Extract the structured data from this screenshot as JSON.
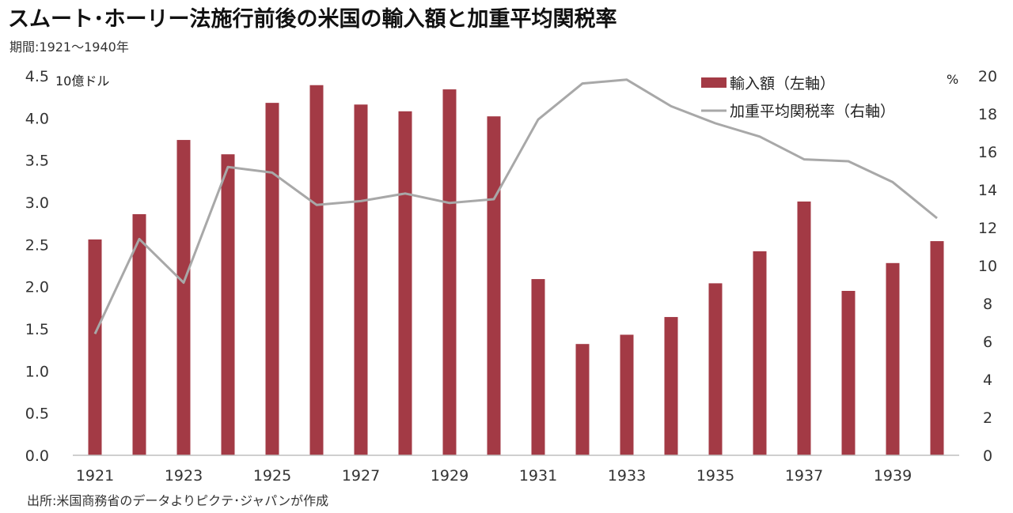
{
  "header": {
    "title": "スムート･ホーリー法施行前後の米国の輸入額と加重平均関税率",
    "subtitle": "期間:1921～1940年"
  },
  "footer": {
    "source": "出所:米国商務省のデータよりピクテ･ジャパンが作成"
  },
  "colors": {
    "bar": "#a33a45",
    "line": "#a8a8a8",
    "axis": "#bfbfbf"
  },
  "chart_data": {
    "type": "bar",
    "x": [
      1921,
      1922,
      1923,
      1924,
      1925,
      1926,
      1927,
      1928,
      1929,
      1930,
      1931,
      1932,
      1933,
      1934,
      1935,
      1936,
      1937,
      1938,
      1939,
      1940
    ],
    "x_tick_labels": [
      "1921",
      "1923",
      "1925",
      "1927",
      "1929",
      "1931",
      "1933",
      "1935",
      "1937",
      "1939"
    ],
    "left_unit": "10億ドル",
    "right_unit": "%",
    "ylim_left": [
      0,
      4.5
    ],
    "ylim_right": [
      0,
      20
    ],
    "y_ticks_left": [
      "0.0",
      "0.5",
      "1.0",
      "1.5",
      "2.0",
      "2.5",
      "3.0",
      "3.5",
      "4.0",
      "4.5"
    ],
    "y_ticks_right": [
      "0",
      "2",
      "4",
      "6",
      "8",
      "10",
      "12",
      "14",
      "16",
      "18",
      "20"
    ],
    "grid": false,
    "legend_position": "top-right",
    "series": [
      {
        "name": "輸入額（左軸）",
        "type": "bar",
        "axis": "left",
        "values": [
          2.56,
          2.86,
          3.74,
          3.57,
          4.18,
          4.39,
          4.16,
          4.08,
          4.34,
          4.02,
          2.09,
          1.32,
          1.43,
          1.64,
          2.04,
          2.42,
          3.01,
          1.95,
          2.28,
          2.54
        ]
      },
      {
        "name": "加重平均関税率（右軸）",
        "type": "line",
        "axis": "right",
        "values": [
          6.4,
          11.4,
          9.1,
          15.2,
          14.9,
          13.2,
          13.4,
          13.8,
          13.3,
          13.5,
          17.7,
          19.6,
          19.8,
          18.4,
          17.5,
          16.8,
          15.6,
          15.5,
          14.4,
          12.5
        ]
      }
    ]
  }
}
